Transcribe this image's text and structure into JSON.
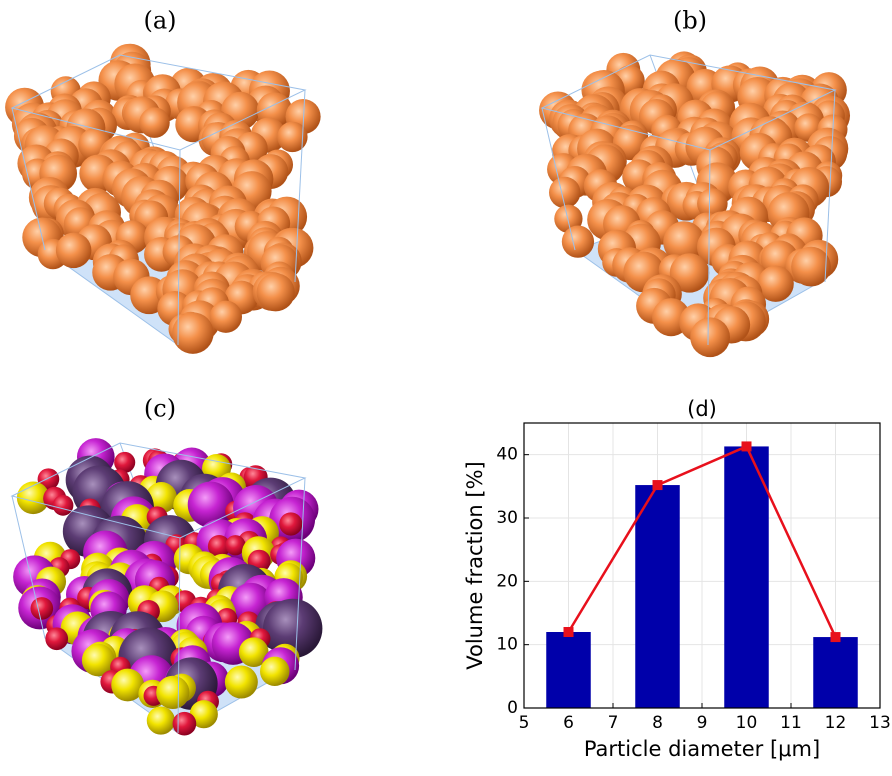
{
  "panels": [
    "(a)",
    "(b)",
    "(c)"
  ],
  "chart_data": {
    "type": "bar",
    "title": "(d)",
    "x_label": "Particle diameter [μm]",
    "y_label": "Volume fraction [%]",
    "x": [
      6,
      8,
      10,
      12
    ],
    "series": [
      {
        "type": "bar",
        "color": "#0000aa",
        "values": [
          12,
          35.2,
          41.3,
          11.2
        ]
      },
      {
        "type": "line",
        "color": "#e8101c",
        "values": [
          12,
          35.2,
          41.3,
          11.2
        ]
      }
    ],
    "xlim": [
      5,
      13
    ],
    "xticks": [
      5,
      6,
      7,
      8,
      9,
      10,
      11,
      12,
      13
    ],
    "ylim": [
      0,
      45
    ],
    "yticks": [
      0,
      10,
      20,
      30,
      40
    ],
    "grid": true
  }
}
